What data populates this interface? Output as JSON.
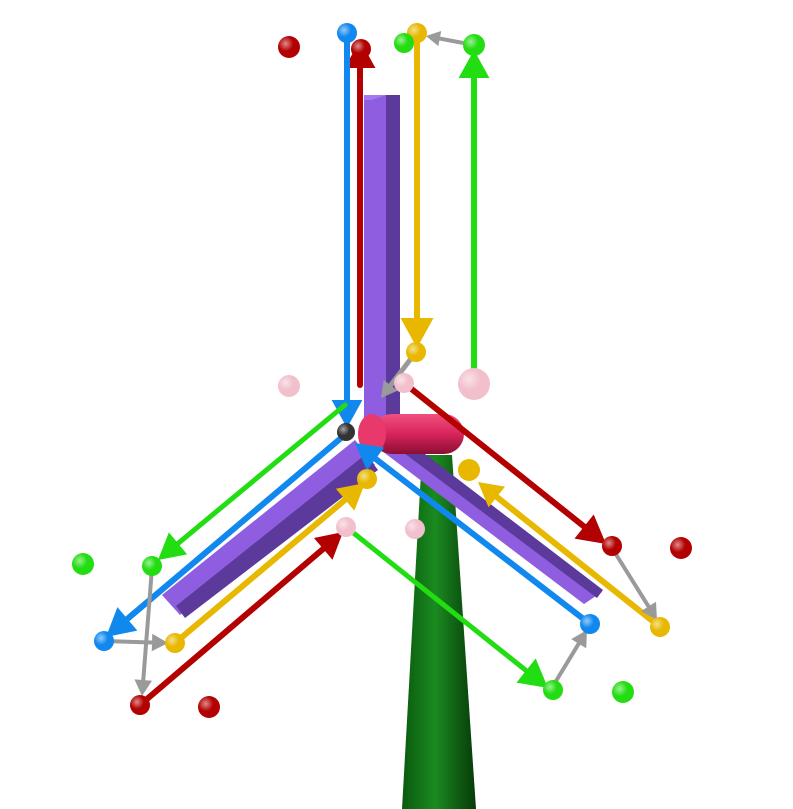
{
  "scene": {
    "background": "#ffffff",
    "colors": {
      "red": "#b30000",
      "green": "#22dd11",
      "blue": "#1188ee",
      "yellow": "#e8b800",
      "gray": "#9a9a9a",
      "pink": "#f2c0cc",
      "blade": "#8a5ad8",
      "blade_dark": "#5a3a9a",
      "hub": "#d8245a",
      "hub_dark": "#9a1038",
      "tower": "#0d6a12",
      "tower_dark": "#063a08",
      "center_node": "#333333"
    },
    "elements": [
      "wind-turbine-tower",
      "three-blades",
      "hub-cylinder",
      "vector-arrows",
      "point-markers"
    ]
  }
}
